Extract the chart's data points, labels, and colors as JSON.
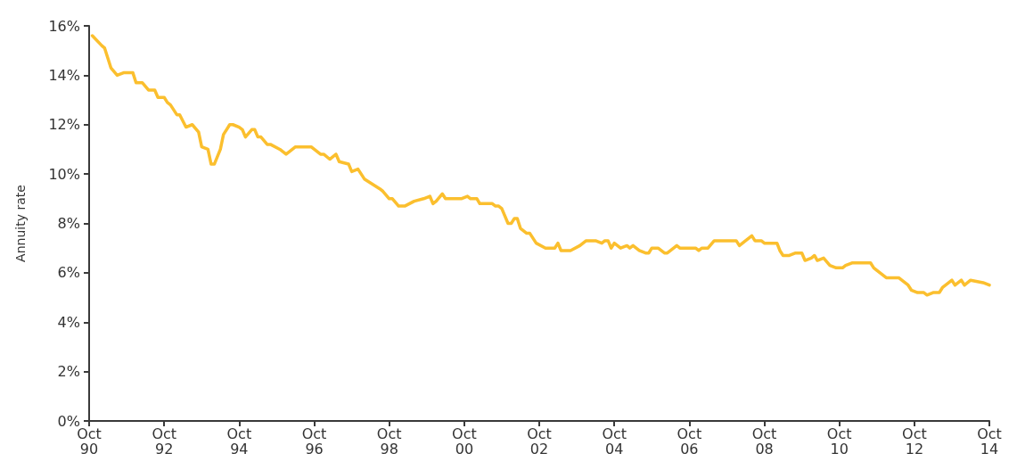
{
  "chart_data": {
    "type": "line",
    "ylabel": "Annuity rate",
    "xlim": [
      "1990-10",
      "2014-10"
    ],
    "xticks": [
      {
        "value": "1990-10",
        "label": "Oct\n90"
      },
      {
        "value": "1992-10",
        "label": "Oct\n92"
      },
      {
        "value": "1994-10",
        "label": "Oct\n94"
      },
      {
        "value": "1996-10",
        "label": "Oct\n96"
      },
      {
        "value": "1998-10",
        "label": "Oct\n98"
      },
      {
        "value": "2000-10",
        "label": "Oct\n00"
      },
      {
        "value": "2002-10",
        "label": "Oct\n02"
      },
      {
        "value": "2004-10",
        "label": "Oct\n04"
      },
      {
        "value": "2006-10",
        "label": "Oct\n06"
      },
      {
        "value": "2008-10",
        "label": "Oct\n08"
      },
      {
        "value": "2010-10",
        "label": "Oct\n10"
      },
      {
        "value": "2012-10",
        "label": "Oct\n12"
      },
      {
        "value": "2014-10",
        "label": "Oct\n14"
      }
    ],
    "ylim": [
      0,
      16
    ],
    "yticks": [
      {
        "value": 0,
        "label": "0%"
      },
      {
        "value": 2,
        "label": "2%"
      },
      {
        "value": 4,
        "label": "4%"
      },
      {
        "value": 6,
        "label": "6%"
      },
      {
        "value": 8,
        "label": "8%"
      },
      {
        "value": 10,
        "label": "10%"
      },
      {
        "value": 12,
        "label": "12%"
      },
      {
        "value": 14,
        "label": "14%"
      },
      {
        "value": 16,
        "label": "16%"
      }
    ],
    "grid": false,
    "marker": "none",
    "line_style": "solid",
    "x": [
      "1990-11",
      "1991-02",
      "1991-03",
      "1991-05",
      "1991-07",
      "1991-09",
      "1991-12",
      "1992-01",
      "1992-03",
      "1992-05",
      "1992-07",
      "1992-08",
      "1992-10",
      "1992-11",
      "1992-12",
      "1993-02",
      "1993-03",
      "1993-05",
      "1993-07",
      "1993-09",
      "1993-10",
      "1993-12",
      "1994-01",
      "1994-02",
      "1994-04",
      "1994-05",
      "1994-07",
      "1994-08",
      "1994-10",
      "1994-11",
      "1994-12",
      "1995-02",
      "1995-03",
      "1995-04",
      "1995-05",
      "1995-07",
      "1995-08",
      "1995-11",
      "1996-01",
      "1996-02",
      "1996-04",
      "1996-06",
      "1996-08",
      "1996-09",
      "1996-12",
      "1997-01",
      "1997-03",
      "1997-05",
      "1997-06",
      "1997-09",
      "1997-10",
      "1997-12",
      "1998-02",
      "1998-07",
      "1998-08",
      "1998-10",
      "1998-11",
      "1999-01",
      "1999-02",
      "1999-03",
      "1999-06",
      "1999-09",
      "1999-11",
      "1999-12",
      "2000-01",
      "2000-03",
      "2000-04",
      "2000-06",
      "2000-08",
      "2000-09",
      "2000-11",
      "2000-12",
      "2001-02",
      "2001-03",
      "2001-05",
      "2001-07",
      "2001-08",
      "2001-09",
      "2001-10",
      "2001-12",
      "2002-01",
      "2002-02",
      "2002-03",
      "2002-04",
      "2002-06",
      "2002-07",
      "2002-09",
      "2002-12",
      "2003-01",
      "2003-03",
      "2003-04",
      "2003-05",
      "2003-08",
      "2003-11",
      "2003-12",
      "2004-01",
      "2004-04",
      "2004-06",
      "2004-07",
      "2004-08",
      "2004-09",
      "2004-10",
      "2004-12",
      "2005-02",
      "2005-03",
      "2005-04",
      "2005-06",
      "2005-08",
      "2005-09",
      "2005-10",
      "2005-12",
      "2006-02",
      "2006-03",
      "2006-04",
      "2006-06",
      "2006-07",
      "2006-10",
      "2006-12",
      "2007-01",
      "2007-02",
      "2007-04",
      "2007-06",
      "2007-08",
      "2007-12",
      "2008-01",
      "2008-02",
      "2008-04",
      "2008-06",
      "2008-07",
      "2008-09",
      "2008-10",
      "2009-01",
      "2009-02",
      "2009-03",
      "2009-04",
      "2009-06",
      "2009-08",
      "2009-10",
      "2009-11",
      "2010-01",
      "2010-02",
      "2010-03",
      "2010-05",
      "2010-07",
      "2010-09",
      "2010-11",
      "2010-12",
      "2011-02",
      "2011-04",
      "2011-08",
      "2011-09",
      "2011-10",
      "2012-01",
      "2012-03",
      "2012-05",
      "2012-07",
      "2012-08",
      "2012-09",
      "2012-11",
      "2013-01",
      "2013-02",
      "2013-04",
      "2013-06",
      "2013-07",
      "2013-08",
      "2013-10",
      "2013-11",
      "2014-01",
      "2014-02",
      "2014-04",
      "2014-08",
      "2014-10"
    ],
    "series": [
      {
        "color": "#fbbf2e",
        "values": [
          15.6,
          15.2,
          15.1,
          14.3,
          14.0,
          14.1,
          14.1,
          13.7,
          13.7,
          13.4,
          13.4,
          13.1,
          13.1,
          12.9,
          12.8,
          12.4,
          12.4,
          11.9,
          12.0,
          11.7,
          11.1,
          11.0,
          10.4,
          10.4,
          11.0,
          11.6,
          12.0,
          12.0,
          11.9,
          11.8,
          11.5,
          11.8,
          11.8,
          11.5,
          11.5,
          11.2,
          11.2,
          11.0,
          10.8,
          10.9,
          11.1,
          11.1,
          11.1,
          11.1,
          10.8,
          10.8,
          10.6,
          10.8,
          10.5,
          10.4,
          10.1,
          10.2,
          9.8,
          9.4,
          9.3,
          9.0,
          9.0,
          8.7,
          8.7,
          8.7,
          8.9,
          9.0,
          9.1,
          8.8,
          8.9,
          9.2,
          9.0,
          9.0,
          9.0,
          9.0,
          9.1,
          9.0,
          9.0,
          8.8,
          8.8,
          8.8,
          8.7,
          8.7,
          8.6,
          8.0,
          8.0,
          8.2,
          8.2,
          7.8,
          7.6,
          7.6,
          7.2,
          7.0,
          7.0,
          7.0,
          7.2,
          6.9,
          6.9,
          7.1,
          7.2,
          7.3,
          7.3,
          7.2,
          7.3,
          7.3,
          7.0,
          7.2,
          7.0,
          7.1,
          7.0,
          7.1,
          6.9,
          6.8,
          6.8,
          7.0,
          7.0,
          6.8,
          6.8,
          6.9,
          7.1,
          7.0,
          7.0,
          7.0,
          6.9,
          7.0,
          7.0,
          7.3,
          7.3,
          7.3,
          7.3,
          7.1,
          7.3,
          7.5,
          7.3,
          7.3,
          7.2,
          7.2,
          7.2,
          6.9,
          6.7,
          6.7,
          6.8,
          6.8,
          6.5,
          6.6,
          6.7,
          6.5,
          6.6,
          6.3,
          6.2,
          6.2,
          6.3,
          6.4,
          6.4,
          6.4,
          6.2,
          6.1,
          5.8,
          5.8,
          5.8,
          5.6,
          5.5,
          5.3,
          5.2,
          5.2,
          5.1,
          5.2,
          5.2,
          5.4,
          5.5,
          5.7,
          5.5,
          5.7,
          5.5,
          5.7,
          5.6,
          5.5
        ]
      }
    ]
  }
}
